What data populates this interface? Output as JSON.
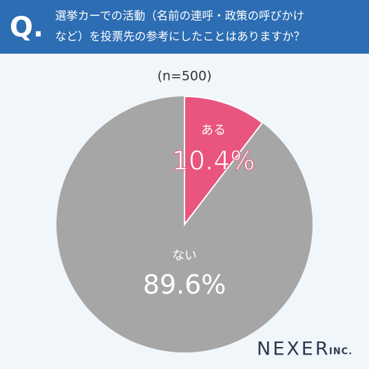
{
  "chart_data": {
    "type": "pie",
    "title_prefix": "Q.",
    "title_lines": [
      "選挙カーでの活動（名前の連呼・政策の呼びかけ",
      "など）を投票先の参考にしたことはありますか？"
    ],
    "subtitle": "(n=500)",
    "categories": [
      "ある",
      "ない"
    ],
    "values": [
      10.4,
      89.6
    ],
    "value_labels": [
      "10.4%",
      "89.6%"
    ],
    "colors": [
      "#e9557e",
      "#a6a6a6"
    ],
    "logo": "NEXER",
    "logo_suffix": "INC."
  }
}
